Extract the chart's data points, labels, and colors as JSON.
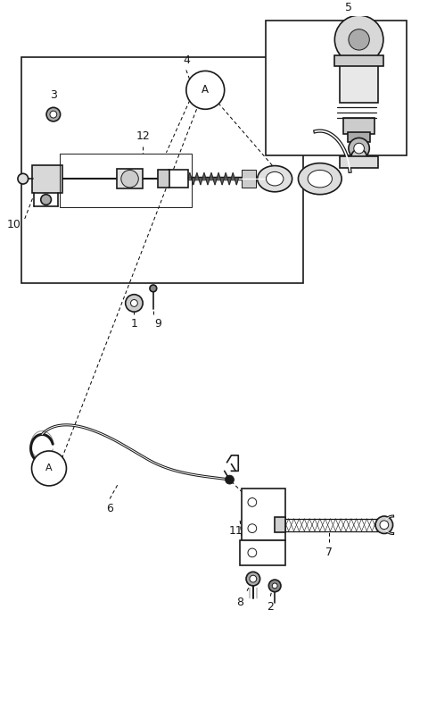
{
  "bg_color": "#ffffff",
  "line_color": "#1a1a1a",
  "fig_width": 4.8,
  "fig_height": 7.95,
  "lw_main": 1.2,
  "lw_thin": 0.7,
  "lw_thick": 2.2
}
